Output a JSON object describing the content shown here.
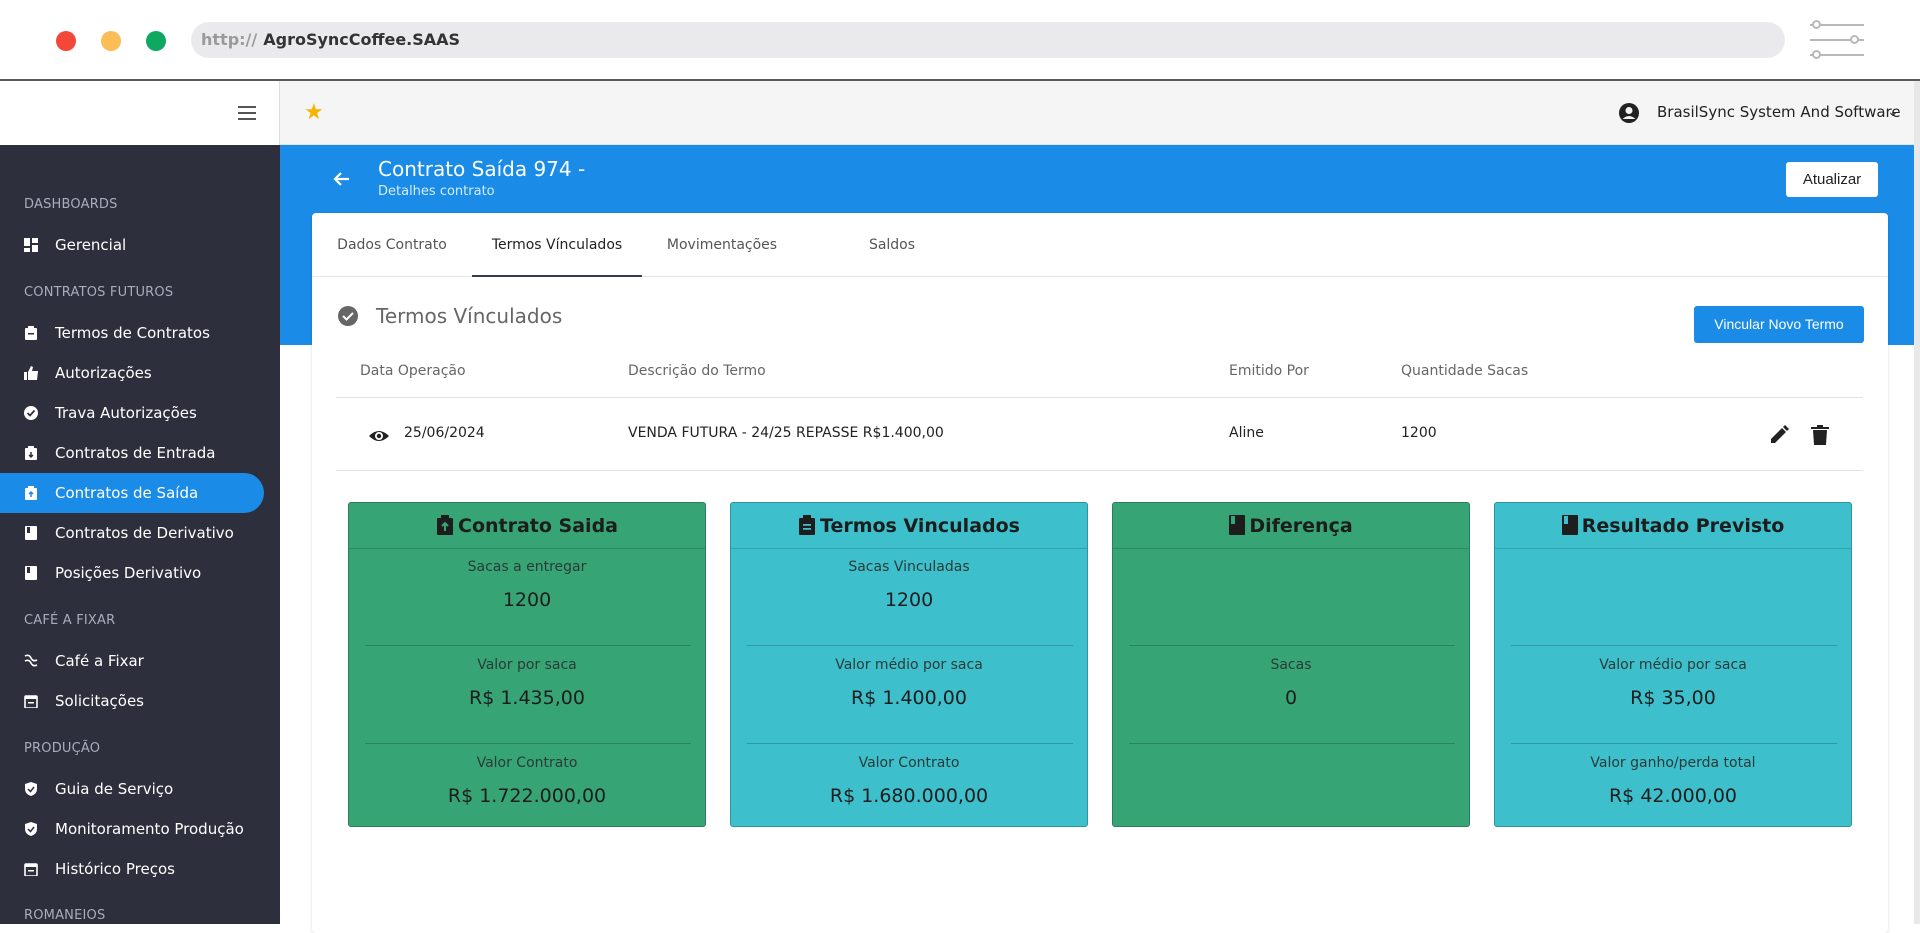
{
  "browser": {
    "protocol": "http://",
    "host": "AgroSyncCoffee.SAAS"
  },
  "topbar": {
    "company": "BrasilSync System And Software",
    "chevron": "⌄"
  },
  "sidebar": {
    "sections": [
      {
        "label": "DASHBOARDS"
      },
      {
        "label": "CONTRATOS FUTUROS"
      },
      {
        "label": "CAFÉ A FIXAR"
      },
      {
        "label": "PRODUÇÃO"
      },
      {
        "label": "ROMANEIOS"
      }
    ],
    "items": [
      {
        "label": "Gerencial",
        "icon": "dashboard-icon"
      },
      {
        "label": "Termos de Contratos",
        "icon": "clipboard-icon"
      },
      {
        "label": "Autorizações",
        "icon": "thumbs-up-icon"
      },
      {
        "label": "Trava Autorizações",
        "icon": "check-circle-icon"
      },
      {
        "label": "Contratos de Entrada",
        "icon": "contract-in-icon"
      },
      {
        "label": "Contratos de Saída",
        "icon": "contract-out-icon",
        "active": true
      },
      {
        "label": "Contratos de Derivativo",
        "icon": "book-icon"
      },
      {
        "label": "Posições Derivativo",
        "icon": "book-icon"
      },
      {
        "label": "Café a Fixar",
        "icon": "coffee-icon"
      },
      {
        "label": "Solicitações",
        "icon": "calendar-icon"
      },
      {
        "label": "Guia de Serviço",
        "icon": "shield-icon"
      },
      {
        "label": "Monitoramento Produção",
        "icon": "shield-icon"
      },
      {
        "label": "Histórico Preços",
        "icon": "calendar-icon"
      }
    ]
  },
  "header": {
    "title": "Contrato Saída 974 -",
    "subtitle": "Detalhes contrato",
    "update_label": "Atualizar"
  },
  "tabs": [
    {
      "label": "Dados Contrato"
    },
    {
      "label": "Termos Vínculados",
      "active": true
    },
    {
      "label": "Movimentações"
    },
    {
      "label": "Saldos"
    }
  ],
  "section": {
    "title": "Termos Vínculados",
    "action_label": "Vincular Novo Termo"
  },
  "table": {
    "columns": [
      "Data Operação",
      "Descrição do Termo",
      "Emitido Por",
      "Quantidade Sacas"
    ],
    "rows": [
      {
        "date": "25/06/2024",
        "description": "VENDA FUTURA - 24/25 REPASSE R$1.400,00",
        "issuer": "Aline",
        "quantity": "1200"
      }
    ]
  },
  "summary": [
    {
      "title": "Contrato Saida",
      "color": "#36a474",
      "icon": "contract-icon",
      "rows": [
        {
          "label": "Sacas a entregar",
          "value": "1200"
        },
        {
          "label": "Valor por saca",
          "value": "R$ 1.435,00"
        },
        {
          "label": "Valor Contrato",
          "value": "R$ 1.722.000,00"
        }
      ]
    },
    {
      "title": "Termos Vinculados",
      "color": "#3dbfcc",
      "icon": "clipboard-icon",
      "rows": [
        {
          "label": "Sacas Vinculadas",
          "value": "1200"
        },
        {
          "label": "Valor médio por saca",
          "value": "R$ 1.400,00"
        },
        {
          "label": "Valor Contrato",
          "value": "R$ 1.680.000,00"
        }
      ]
    },
    {
      "title": "Diferença",
      "color": "#36a474",
      "icon": "book-icon",
      "rows": [
        {
          "label": "",
          "value": ""
        },
        {
          "label": "Sacas",
          "value": "0"
        },
        {
          "label": "",
          "value": ""
        }
      ]
    },
    {
      "title": "Resultado Previsto",
      "color": "#3dbfcc",
      "icon": "book-icon",
      "rows": [
        {
          "label": "",
          "value": ""
        },
        {
          "label": "Valor médio por saca",
          "value": "R$ 35,00"
        },
        {
          "label": "Valor ganho/perda total",
          "value": "R$ 42.000,00"
        }
      ]
    }
  ]
}
